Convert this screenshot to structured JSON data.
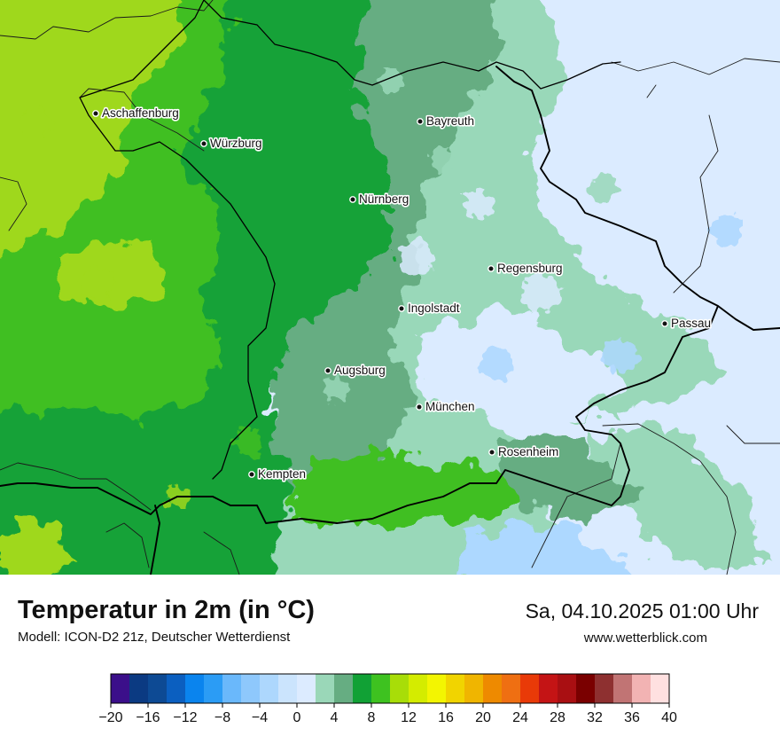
{
  "header": {
    "title": "Temperatur in 2m (in °C)",
    "subtitle": "Modell: ICON-D2 21z, Deutscher Wetterdienst",
    "datetime": "Sa, 04.10.2025 01:00 Uhr",
    "website": "www.wetterblick.com"
  },
  "cities": [
    {
      "name": "Aschaffenburg"
    },
    {
      "name": "Würzburg"
    },
    {
      "name": "Bayreuth"
    },
    {
      "name": "Nürnberg"
    },
    {
      "name": "Regensburg"
    },
    {
      "name": "Ingolstadt"
    },
    {
      "name": "Passau"
    },
    {
      "name": "Augsburg"
    },
    {
      "name": "München"
    },
    {
      "name": "Rosenheim"
    },
    {
      "name": "Kempten"
    }
  ],
  "legend": {
    "ticks": [
      "−20",
      "−16",
      "−12",
      "−8",
      "−4",
      "0",
      "4",
      "8",
      "12",
      "16",
      "20",
      "24",
      "28",
      "32",
      "36",
      "40"
    ],
    "colors": [
      "#3b0f8a",
      "#0b3a82",
      "#0d4a94",
      "#0b5fc0",
      "#0a84ee",
      "#2b9cf5",
      "#6ab8fb",
      "#8ec8fc",
      "#add7fd",
      "#cbe4fd",
      "#dcebff",
      "#9ad7b8",
      "#66ad82",
      "#11a135",
      "#3ec220",
      "#a8dd08",
      "#d4ec00",
      "#f3f501",
      "#f1d400",
      "#f0b500",
      "#ee8a00",
      "#ef6f12",
      "#e93a08",
      "#c41415",
      "#a90f12",
      "#7a0000",
      "#8e3030",
      "#c17474",
      "#f2b3b3",
      "#ffe0e0"
    ]
  },
  "colors": {
    "lime": "#9fd81a",
    "bright_green": "#3fbf22",
    "green": "#13a238",
    "dark_green": "#66ad82",
    "mint": "#99d8b9",
    "pale_blue": "#dbebff",
    "blue": "#add8ff",
    "border": "#000000"
  }
}
